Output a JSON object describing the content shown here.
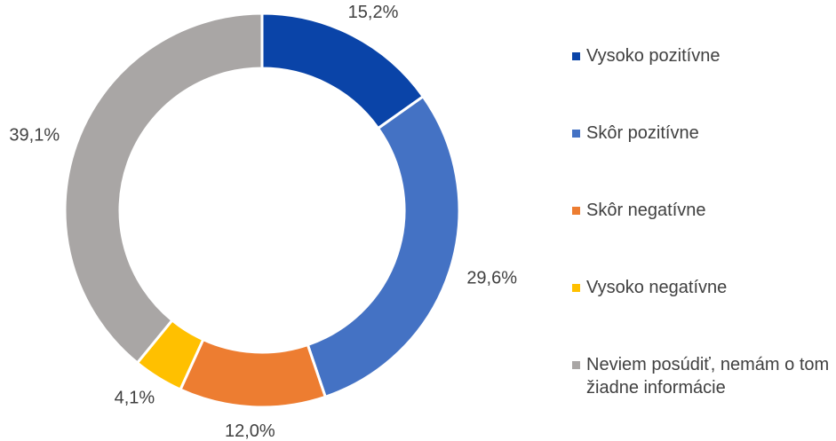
{
  "chart_data": {
    "type": "donut",
    "categories": [
      "Vysoko pozitívne",
      "Skôr pozitívne",
      "Skôr negatívne",
      "Vysoko negatívne",
      "Neviem posúdiť, nemám o tom žiadne informácie"
    ],
    "values": [
      15.2,
      29.6,
      12.0,
      4.1,
      39.1
    ],
    "value_labels": [
      "15,2%",
      "29,6%",
      "12,0%",
      "4,1%",
      "39,1%"
    ],
    "colors": [
      "#0a44a8",
      "#4472c4",
      "#ed7d31",
      "#ffc000",
      "#a9a6a5"
    ]
  }
}
